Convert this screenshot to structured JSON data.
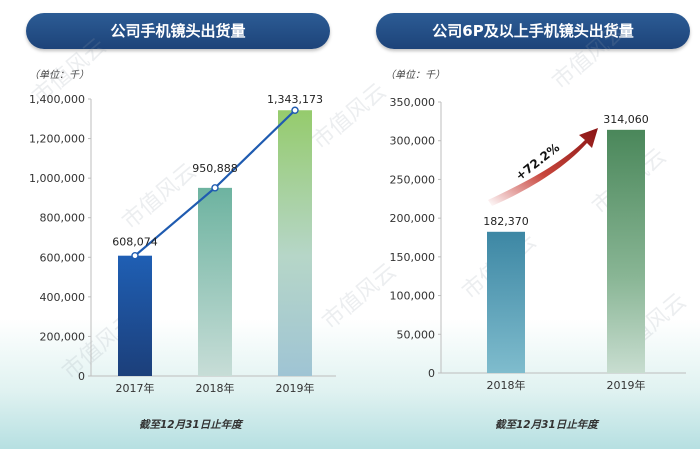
{
  "charts": {
    "left": {
      "title": "公司手机镜头出货量",
      "unit": "（单位：千）",
      "footnote": "截至12月31日止年度"
    },
    "right": {
      "title": "公司6P及以上手机镜头出货量",
      "unit": "（单位：千）",
      "footnote": "截至12月31日止年度"
    }
  },
  "watermark": "市值风云",
  "chart_data": [
    {
      "type": "bar",
      "title": "公司手机镜头出货量",
      "ylabel": "（单位：千）",
      "xlabel": "截至12月31日止年度",
      "categories": [
        "2017年",
        "2018年",
        "2019年"
      ],
      "values": [
        608074,
        950888,
        1343173
      ],
      "value_labels": [
        "608,074",
        "950,888",
        "1,343,173"
      ],
      "ylim": [
        0,
        1400000
      ],
      "yticks": [
        "0",
        "200,000",
        "400,000",
        "600,000",
        "800,000",
        "1,000,000",
        "1,200,000",
        "1,400,000"
      ],
      "overlay_line": true,
      "colors": [
        "#1e55a6",
        "#6fb39a",
        "#94c870"
      ]
    },
    {
      "type": "bar",
      "title": "公司6P及以上手机镜头出货量",
      "ylabel": "（单位：千）",
      "xlabel": "截至12月31日止年度",
      "categories": [
        "2018年",
        "2019年"
      ],
      "values": [
        182370,
        314060
      ],
      "value_labels": [
        "182,370",
        "314,060"
      ],
      "ylim": [
        0,
        350000
      ],
      "yticks": [
        "0",
        "50,000",
        "100,000",
        "150,000",
        "200,000",
        "250,000",
        "300,000",
        "350,000"
      ],
      "annotation": "+72.2%",
      "colors": [
        "#3e8aa6",
        "#4d8a5e"
      ]
    }
  ]
}
